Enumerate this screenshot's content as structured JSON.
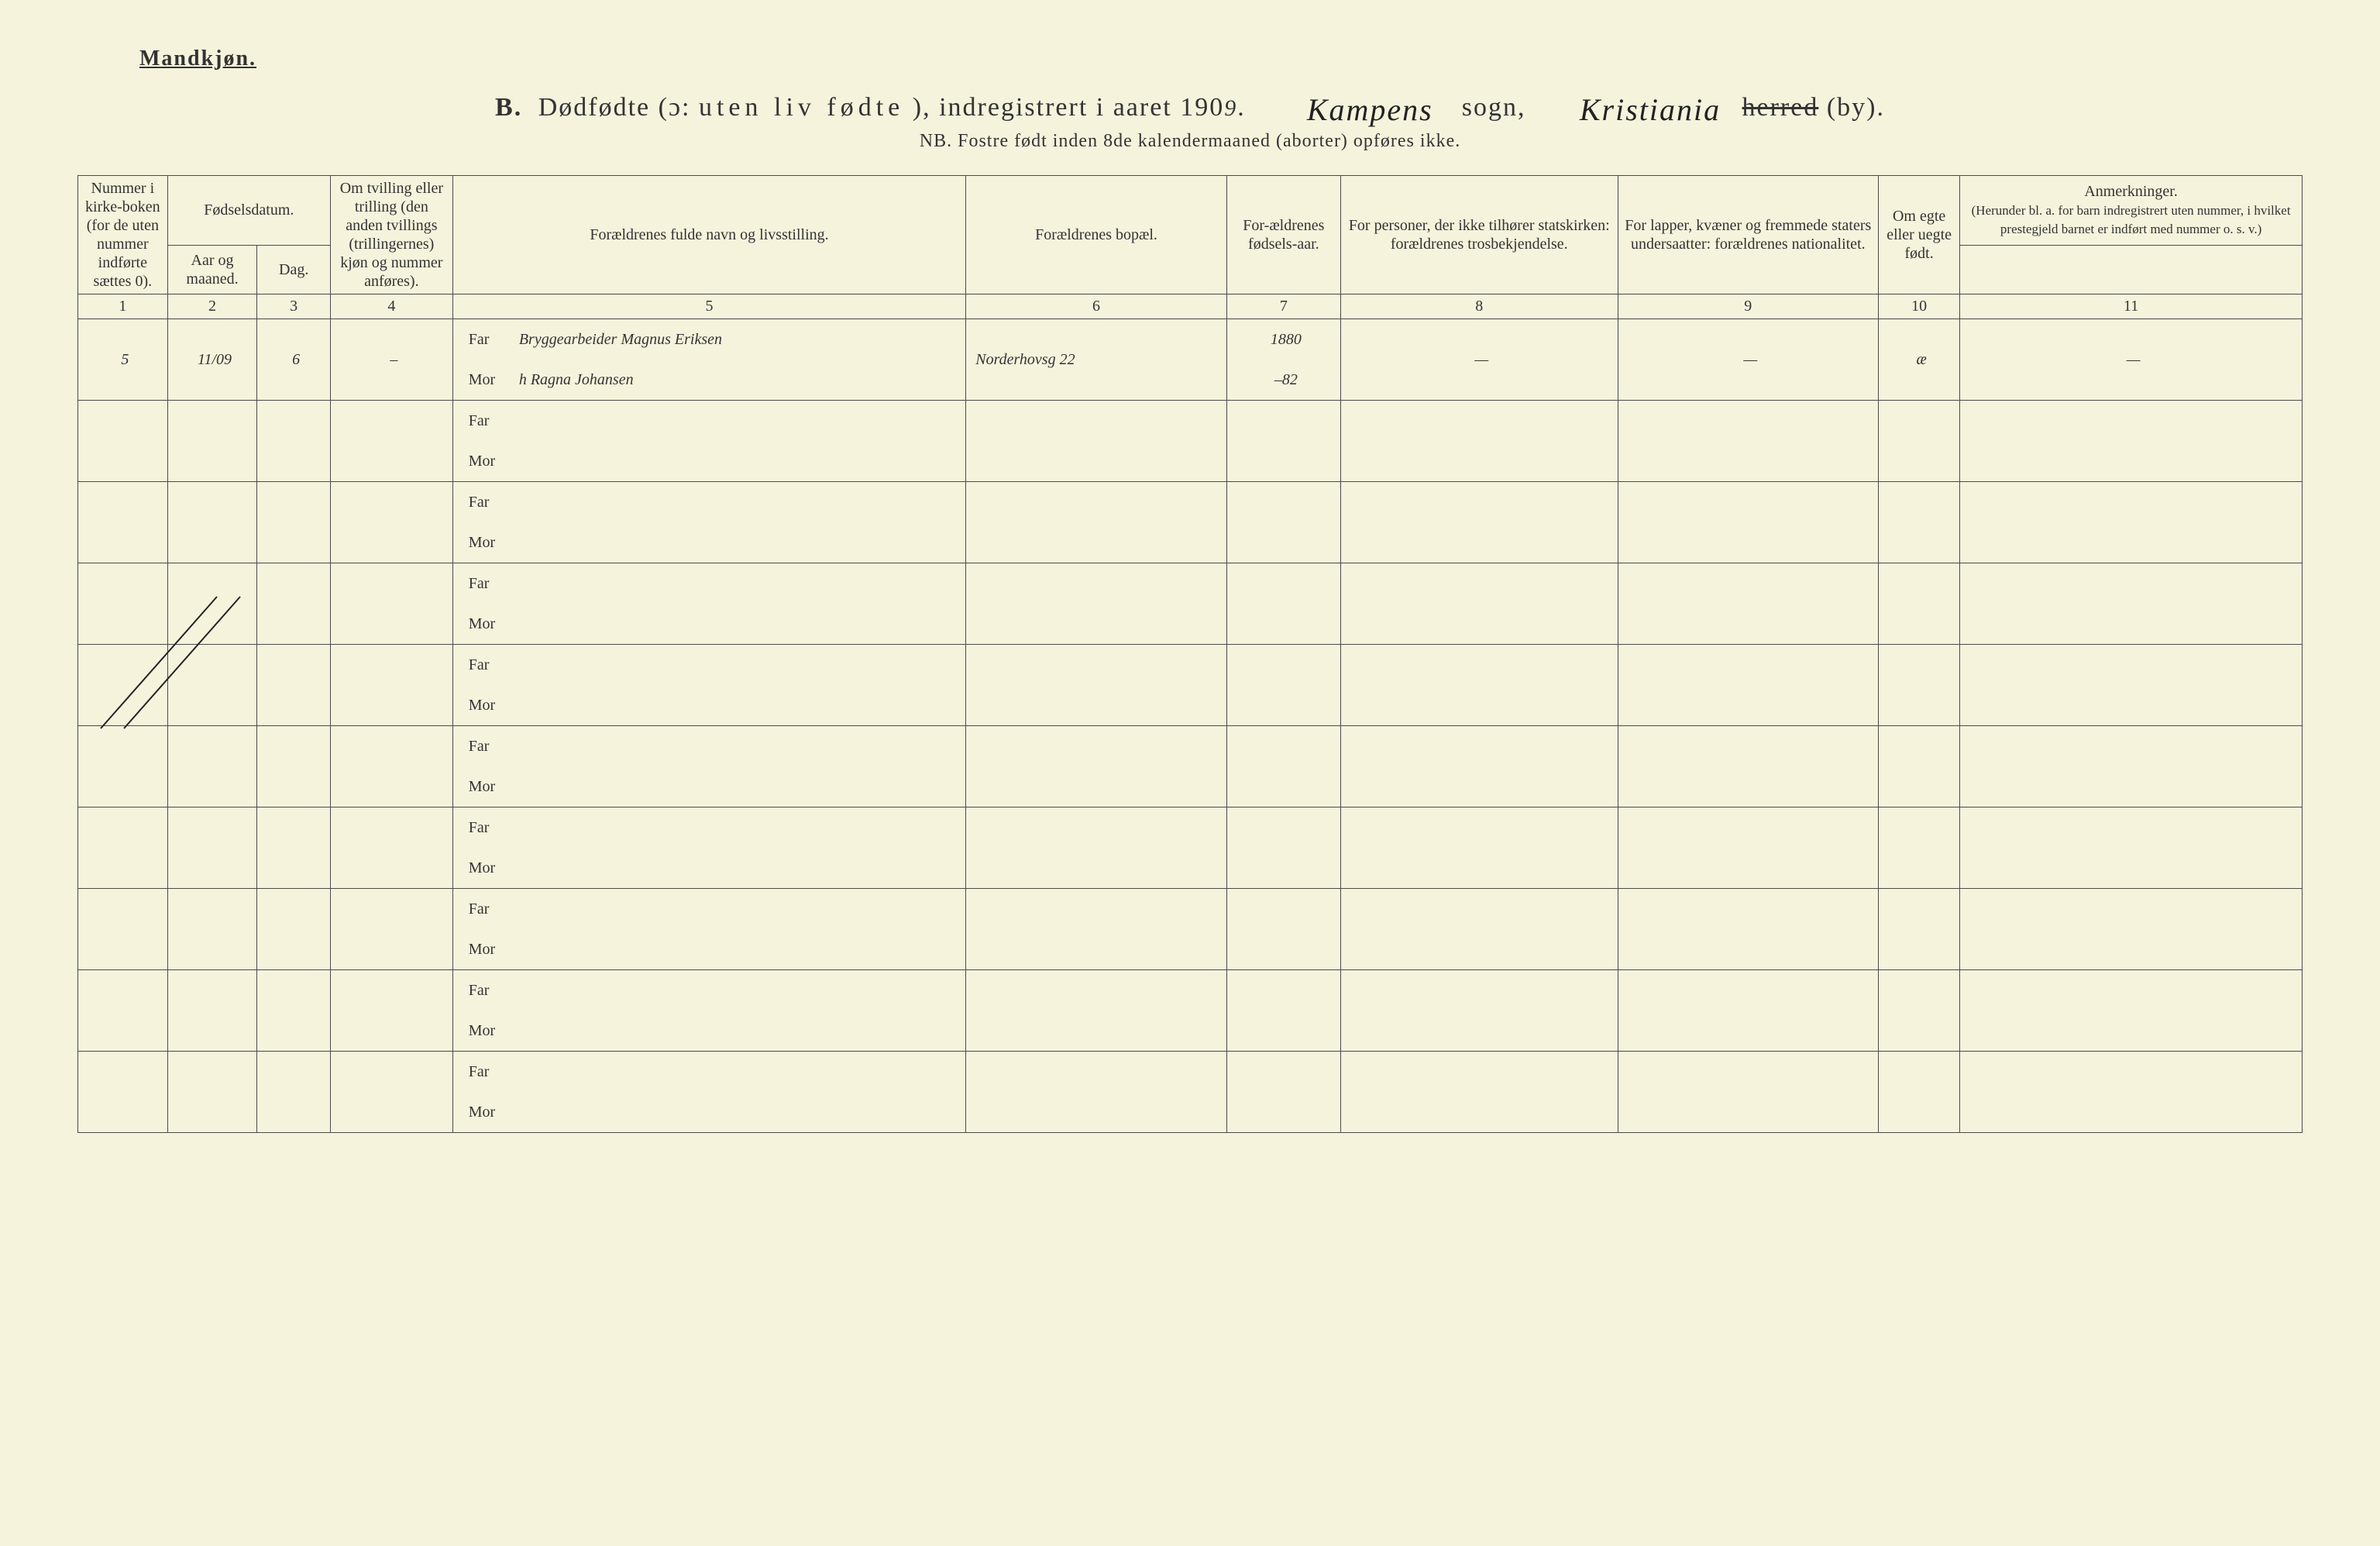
{
  "header": {
    "gender": "Mandkjøn.",
    "prefix": "B.",
    "title_a": "Dødfødte (ɔ:",
    "title_b": "uten liv fødte",
    "title_c": "), indregistrert i aaret 190",
    "year_digit": "9",
    "period": ".",
    "sogn_hand": "Kampens",
    "sogn_label": "sogn,",
    "herred_hand": "Kristiania",
    "herred_struck": "herred",
    "herred_suffix": " (by).",
    "nb": "NB. Fostre født inden 8de kalendermaaned (aborter) opføres ikke."
  },
  "columns": {
    "c1": "Nummer i kirke-boken (for de uten nummer indførte sættes 0).",
    "c2_top": "Fødselsdatum.",
    "c2a": "Aar og maaned.",
    "c2b": "Dag.",
    "c4": "Om tvilling eller trilling (den anden tvillings (trillingernes) kjøn og nummer anføres).",
    "c5": "Forældrenes fulde navn og livsstilling.",
    "c6": "Forældrenes bopæl.",
    "c7": "For-ældrenes fødsels-aar.",
    "c8": "For personer, der ikke tilhører statskirken: forældrenes trosbekjendelse.",
    "c9": "For lapper, kvæner og fremmede staters undersaatter: forældrenes nationalitet.",
    "c10": "Om egte eller uegte født.",
    "c11_top": "Anmerkninger.",
    "c11_sub": "(Herunder bl. a. for barn indregistrert uten nummer, i hvilket prestegjeld barnet er indført med nummer o. s. v.)",
    "nums": [
      "1",
      "2",
      "3",
      "4",
      "5",
      "6",
      "7",
      "8",
      "9",
      "10",
      "11"
    ],
    "far": "Far",
    "mor": "Mor"
  },
  "entry": {
    "num": "5",
    "aar_mnd": "11/09",
    "dag": "6",
    "tvilling": "–",
    "far_text": "Bryggearbeider Magnus Eriksen",
    "mor_text": "h Ragna Johansen",
    "bopael": "Norderhovsg 22",
    "far_aar": "1880",
    "mor_aar": "–82",
    "c8": "—",
    "c9": "—",
    "egte": "æ",
    "anm": "—"
  },
  "style": {
    "paper_bg": "#f6f3dd",
    "line_color": "#4a4a4a",
    "hand_color": "#222222",
    "print_color": "#333333",
    "header_fontsize": 34,
    "cell_fontsize": 20,
    "hand_fontsize": 34
  }
}
